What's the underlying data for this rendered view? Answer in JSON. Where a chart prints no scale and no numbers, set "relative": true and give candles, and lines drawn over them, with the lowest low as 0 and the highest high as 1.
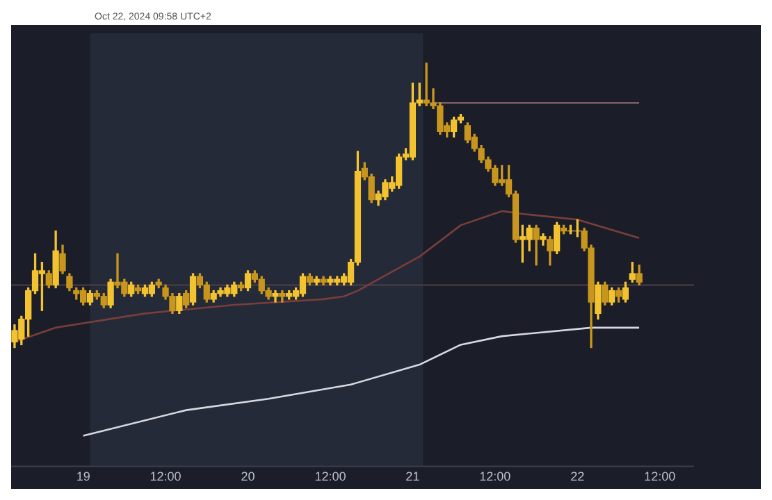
{
  "chart_data": {
    "type": "candlestick",
    "relative": true,
    "annotations": [
      "Oct 22, 2024 09:58 UTC+2"
    ],
    "xlim": [
      "2024-10-18T13:30",
      "2024-10-22T17:00"
    ],
    "xticks": [
      {
        "value": "2024-10-19T00:00",
        "label": "19"
      },
      {
        "value": "2024-10-19T12:00",
        "label": "12:00"
      },
      {
        "value": "2024-10-20T00:00",
        "label": "20"
      },
      {
        "value": "2024-10-20T12:00",
        "label": "12:00"
      },
      {
        "value": "2024-10-21T00:00",
        "label": "21"
      },
      {
        "value": "2024-10-21T12:00",
        "label": "12:00"
      },
      {
        "value": "2024-10-22T00:00",
        "label": "22"
      },
      {
        "value": "2024-10-22T12:00",
        "label": "12:00"
      }
    ],
    "grid": false,
    "legend": false,
    "bands": [
      {
        "axis": "x",
        "from": "2024-10-19T01:00",
        "to": "2024-10-21T01:30",
        "color": "#252a38"
      }
    ],
    "ref_lines": [
      {
        "axis": "y",
        "value": 0.22,
        "color": "#4e3f45"
      }
    ],
    "series": [
      {
        "type": "line",
        "color": "#7a3e3a",
        "x": [
          "2024-10-18T14:00",
          "2024-10-18T20:00",
          "2024-10-19T09:00",
          "2024-10-19T22:00",
          "2024-10-20T11:00",
          "2024-10-20T14:00",
          "2024-10-20T16:00",
          "2024-10-21T01:00",
          "2024-10-21T07:00",
          "2024-10-21T13:00",
          "2024-10-21T16:00",
          "2024-10-22T00:00",
          "2024-10-22T09:00"
        ],
        "values": [
          0.02,
          0.07,
          0.12,
          0.15,
          0.17,
          0.18,
          0.2,
          0.32,
          0.43,
          0.48,
          0.47,
          0.45,
          0.385
        ]
      },
      {
        "type": "line",
        "color": "#d8d8e0",
        "x": [
          "2024-10-19T00:00",
          "2024-10-19T15:00",
          "2024-10-20T03:00",
          "2024-10-20T15:00",
          "2024-10-21T01:00",
          "2024-10-21T07:00",
          "2024-10-21T13:00",
          "2024-10-22T02:00",
          "2024-10-22T09:00"
        ],
        "values": [
          -0.31,
          -0.22,
          -0.18,
          -0.13,
          -0.06,
          0.01,
          0.04,
          0.07,
          0.07
        ]
      },
      {
        "type": "line",
        "color": "#7c5e62",
        "x": [
          "2024-10-21T03:00",
          "2024-10-22T09:00"
        ],
        "values": [
          0.86,
          0.86
        ]
      },
      {
        "colors": [
          "#f2c230",
          "#f2c230",
          "#f2c230",
          "#f2c230",
          "#f2c230",
          "#c8961e",
          "#f2c230",
          "#c8961e",
          "#c8961e",
          "#c8961e",
          "#c8961e",
          "#f2c230",
          "#c8961e",
          "#c8961e",
          "#f2c230",
          "#c8961e",
          "#c8961e",
          "#f2c230",
          "#c8961e",
          "#f2c230",
          "#f2c230",
          "#c8961e",
          "#c8961e",
          "#c8961e",
          "#f2c230",
          "#c8961e",
          "#f2c230",
          "#c8961e",
          "#c8961e",
          "#f2c230",
          "#f2c230",
          "#f2c230",
          "#f2c230",
          "#c8961e",
          "#f2c230",
          "#c8961e",
          "#c8961e",
          "#c8961e",
          "#f2c230",
          "#c8961e",
          "#f2c230",
          "#f2c230",
          "#f2c230",
          "#c8961e",
          "#f2c230",
          "#c8961e",
          "#f2c230",
          "#f2c230",
          "#f2c230",
          "#f2c230",
          "#f2c230",
          "#c8961e",
          "#c8961e",
          "#f2c230",
          "#f2c230",
          "#f2c230",
          "#f2c230",
          "#f2c230",
          "#f2c230",
          "#f2c230",
          "#c8961e",
          "#c8961e",
          "#c8961e",
          "#c8961e",
          "#f2c230",
          "#f2c230",
          "#c8961e",
          "#c8961e",
          "#c8961e",
          "#c8961e",
          "#c8961e",
          "#c8961e",
          "#c8961e",
          "#c8961e",
          "#f2c230",
          "#f2c230",
          "#c8961e",
          "#f2c230",
          "#c8961e",
          "#f2c230",
          "#c8961e",
          "#f2c230",
          "#f2c230",
          "#c8961e",
          "#c8961e",
          "#f2c230",
          "#c8961e",
          "#f2c230",
          "#c8961e",
          "#f2c230",
          "#f2c230",
          "#c8961e"
        ],
        "x": [
          "2024-10-18T14:00",
          "2024-10-18T15:00",
          "2024-10-18T16:00",
          "2024-10-18T17:00",
          "2024-10-18T18:00",
          "2024-10-18T19:00",
          "2024-10-18T20:00",
          "2024-10-18T21:00",
          "2024-10-18T22:00",
          "2024-10-18T23:00",
          "2024-10-19T00:00",
          "2024-10-19T01:00",
          "2024-10-19T02:00",
          "2024-10-19T03:00",
          "2024-10-19T04:00",
          "2024-10-19T05:00",
          "2024-10-19T06:00",
          "2024-10-19T07:00",
          "2024-10-19T08:00",
          "2024-10-19T09:00",
          "2024-10-19T10:00",
          "2024-10-19T11:00",
          "2024-10-19T12:00",
          "2024-10-19T13:00",
          "2024-10-19T14:00",
          "2024-10-19T15:00",
          "2024-10-19T16:00",
          "2024-10-19T17:00",
          "2024-10-19T18:00",
          "2024-10-19T19:00",
          "2024-10-19T20:00",
          "2024-10-19T21:00",
          "2024-10-19T22:00",
          "2024-10-19T23:00",
          "2024-10-20T00:00",
          "2024-10-20T01:00",
          "2024-10-20T02:00",
          "2024-10-20T03:00",
          "2024-10-20T04:00",
          "2024-10-20T05:00",
          "2024-10-20T06:00",
          "2024-10-20T07:00",
          "2024-10-20T08:00",
          "2024-10-20T09:00",
          "2024-10-20T10:00",
          "2024-10-20T11:00",
          "2024-10-20T12:00",
          "2024-10-20T13:00",
          "2024-10-20T14:00",
          "2024-10-20T15:00",
          "2024-10-20T16:00",
          "2024-10-20T17:00",
          "2024-10-20T18:00",
          "2024-10-20T19:00",
          "2024-10-20T20:00",
          "2024-10-20T21:00",
          "2024-10-20T22:00",
          "2024-10-20T23:00",
          "2024-10-21T00:00",
          "2024-10-21T01:00",
          "2024-10-21T02:00",
          "2024-10-21T03:00",
          "2024-10-21T04:00",
          "2024-10-21T05:00",
          "2024-10-21T06:00",
          "2024-10-21T07:00",
          "2024-10-21T08:00",
          "2024-10-21T09:00",
          "2024-10-21T10:00",
          "2024-10-21T11:00",
          "2024-10-21T12:00",
          "2024-10-21T13:00",
          "2024-10-21T14:00",
          "2024-10-21T15:00",
          "2024-10-21T16:00",
          "2024-10-21T17:00",
          "2024-10-21T18:00",
          "2024-10-21T19:00",
          "2024-10-21T20:00",
          "2024-10-21T21:00",
          "2024-10-21T22:00",
          "2024-10-21T23:00",
          "2024-10-22T00:00",
          "2024-10-22T01:00",
          "2024-10-22T02:00",
          "2024-10-22T03:00",
          "2024-10-22T04:00",
          "2024-10-22T05:00",
          "2024-10-22T06:00",
          "2024-10-22T07:00",
          "2024-10-22T08:00",
          "2024-10-22T09:00"
        ],
        "ohlc": [
          [
            0.02,
            0.08,
            0,
            0.06
          ],
          [
            0.03,
            0.11,
            0.01,
            0.1
          ],
          [
            0.1,
            0.21,
            0.04,
            0.2
          ],
          [
            0.2,
            0.33,
            0.19,
            0.27
          ],
          [
            0.26,
            0.3,
            0.13,
            0.27
          ],
          [
            0.26,
            0.27,
            0.21,
            0.22
          ],
          [
            0.22,
            0.41,
            0.21,
            0.34
          ],
          [
            0.33,
            0.36,
            0.26,
            0.27
          ],
          [
            0.25,
            0.26,
            0.2,
            0.21
          ],
          [
            0.2,
            0.21,
            0.17,
            0.19
          ],
          [
            0.2,
            0.21,
            0.15,
            0.16
          ],
          [
            0.16,
            0.2,
            0.15,
            0.19
          ],
          [
            0.19,
            0.2,
            0.17,
            0.18
          ],
          [
            0.18,
            0.19,
            0.14,
            0.15
          ],
          [
            0.15,
            0.24,
            0.14,
            0.23
          ],
          [
            0.23,
            0.33,
            0.21,
            0.22
          ],
          [
            0.23,
            0.24,
            0.18,
            0.19
          ],
          [
            0.19,
            0.23,
            0.18,
            0.22
          ],
          [
            0.21,
            0.22,
            0.19,
            0.2
          ],
          [
            0.19,
            0.22,
            0.18,
            0.21
          ],
          [
            0.19,
            0.23,
            0.18,
            0.22
          ],
          [
            0.23,
            0.24,
            0.21,
            0.22
          ],
          [
            0.21,
            0.22,
            0.17,
            0.18
          ],
          [
            0.18,
            0.19,
            0.12,
            0.13
          ],
          [
            0.13,
            0.19,
            0.12,
            0.18
          ],
          [
            0.19,
            0.2,
            0.14,
            0.15
          ],
          [
            0.16,
            0.26,
            0.15,
            0.25
          ],
          [
            0.25,
            0.26,
            0.21,
            0.22
          ],
          [
            0.22,
            0.23,
            0.16,
            0.17
          ],
          [
            0.17,
            0.2,
            0.16,
            0.19
          ],
          [
            0.19,
            0.21,
            0.18,
            0.2
          ],
          [
            0.19,
            0.22,
            0.18,
            0.21
          ],
          [
            0.19,
            0.23,
            0.18,
            0.22
          ],
          [
            0.22,
            0.23,
            0.2,
            0.21
          ],
          [
            0.21,
            0.27,
            0.2,
            0.26
          ],
          [
            0.26,
            0.27,
            0.23,
            0.24
          ],
          [
            0.24,
            0.25,
            0.19,
            0.2
          ],
          [
            0.2,
            0.21,
            0.17,
            0.18
          ],
          [
            0.18,
            0.2,
            0.16,
            0.19
          ],
          [
            0.19,
            0.2,
            0.16,
            0.18
          ],
          [
            0.18,
            0.2,
            0.17,
            0.19
          ],
          [
            0.18,
            0.21,
            0.17,
            0.2
          ],
          [
            0.19,
            0.26,
            0.18,
            0.25
          ],
          [
            0.25,
            0.26,
            0.22,
            0.23
          ],
          [
            0.23,
            0.25,
            0.22,
            0.24
          ],
          [
            0.24,
            0.25,
            0.22,
            0.23
          ],
          [
            0.23,
            0.25,
            0.22,
            0.24
          ],
          [
            0.23,
            0.25,
            0.22,
            0.24
          ],
          [
            0.23,
            0.26,
            0.22,
            0.25
          ],
          [
            0.23,
            0.31,
            0.22,
            0.3
          ],
          [
            0.3,
            0.69,
            0.29,
            0.62
          ],
          [
            0.63,
            0.65,
            0.59,
            0.6
          ],
          [
            0.6,
            0.61,
            0.51,
            0.52
          ],
          [
            0.52,
            0.55,
            0.5,
            0.54
          ],
          [
            0.53,
            0.59,
            0.52,
            0.58
          ],
          [
            0.56,
            0.6,
            0.55,
            0.58
          ],
          [
            0.57,
            0.68,
            0.56,
            0.67
          ],
          [
            0.67,
            0.7,
            0.66,
            0.68
          ],
          [
            0.67,
            0.93,
            0.66,
            0.86
          ],
          [
            0.86,
            0.93,
            0.85,
            0.87
          ],
          [
            0.87,
            1,
            0.85,
            0.86
          ],
          [
            0.86,
            0.91,
            0.84,
            0.85
          ],
          [
            0.85,
            0.86,
            0.75,
            0.76
          ],
          [
            0.78,
            0.79,
            0.74,
            0.76
          ],
          [
            0.76,
            0.81,
            0.74,
            0.8
          ],
          [
            0.8,
            0.82,
            0.79,
            0.81
          ],
          [
            0.78,
            0.79,
            0.72,
            0.73
          ],
          [
            0.74,
            0.75,
            0.69,
            0.7
          ],
          [
            0.7,
            0.71,
            0.65,
            0.66
          ],
          [
            0.66,
            0.67,
            0.62,
            0.63
          ],
          [
            0.63,
            0.64,
            0.57,
            0.58
          ],
          [
            0.59,
            0.64,
            0.57,
            0.58
          ],
          [
            0.59,
            0.64,
            0.53,
            0.54
          ],
          [
            0.54,
            0.55,
            0.37,
            0.38
          ],
          [
            0.38,
            0.43,
            0.3,
            0.39
          ],
          [
            0.38,
            0.43,
            0.34,
            0.42
          ],
          [
            0.42,
            0.43,
            0.29,
            0.38
          ],
          [
            0.38,
            0.4,
            0.36,
            0.39
          ],
          [
            0.38,
            0.39,
            0.29,
            0.34
          ],
          [
            0.34,
            0.44,
            0.33,
            0.43
          ],
          [
            0.42,
            0.43,
            0.4,
            0.41
          ],
          [
            0.41,
            0.43,
            0.4,
            0.41
          ],
          [
            0.41,
            0.45,
            0.39,
            0.41
          ],
          [
            0.41,
            0.42,
            0.34,
            0.35
          ],
          [
            0.35,
            0.36,
            0,
            0.16
          ],
          [
            0.12,
            0.23,
            0.1,
            0.22
          ],
          [
            0.22,
            0.23,
            0.15,
            0.16
          ],
          [
            0.16,
            0.21,
            0.15,
            0.2
          ],
          [
            0.2,
            0.21,
            0.16,
            0.18
          ],
          [
            0.17,
            0.23,
            0.16,
            0.21
          ],
          [
            0.24,
            0.3,
            0.23,
            0.26
          ],
          [
            0.26,
            0.29,
            0.22,
            0.23
          ]
        ]
      }
    ]
  }
}
